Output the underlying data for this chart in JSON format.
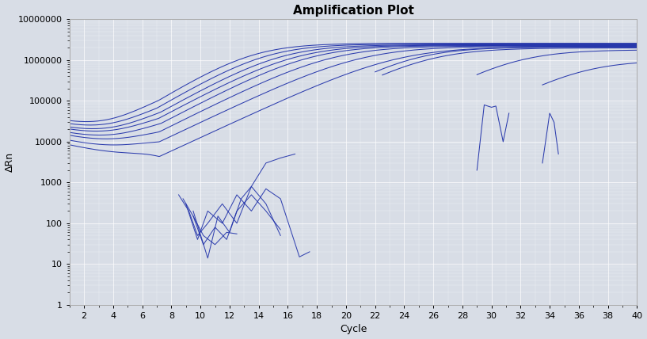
{
  "title": "Amplification Plot",
  "xlabel": "Cycle",
  "ylabel": "ΔRn",
  "xlim": [
    1,
    40
  ],
  "ylim_log": [
    1,
    10000000
  ],
  "yticks": [
    1,
    10,
    100,
    1000,
    10000,
    100000,
    1000000,
    10000000
  ],
  "xticks": [
    2,
    4,
    6,
    8,
    10,
    12,
    14,
    16,
    18,
    20,
    22,
    24,
    26,
    28,
    30,
    32,
    34,
    36,
    38,
    40
  ],
  "line_color": "#2233aa",
  "bg_color": "#dde2ea",
  "grid_color": "#ffffff",
  "title_fontsize": 11,
  "axis_fontsize": 9,
  "tick_fontsize": 8
}
